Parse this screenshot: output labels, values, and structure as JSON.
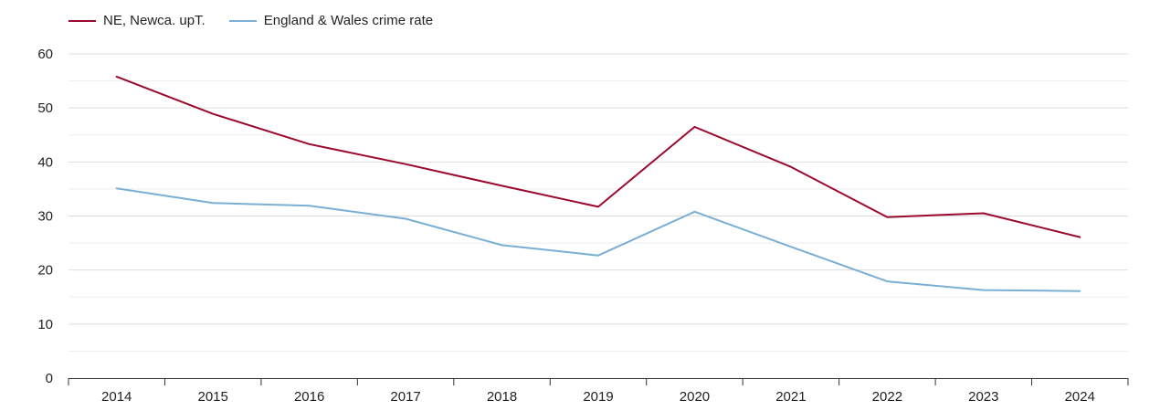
{
  "colors": {
    "series_ne": "#9b0a2e",
    "series_ew": "#7aafd4",
    "grid": "#dddddd",
    "grid_minor": "#eeeeee",
    "axis": "#333333",
    "text": "#222222"
  },
  "chart_data": {
    "type": "line",
    "title": "",
    "xlabel": "",
    "ylabel": "",
    "legend_position": "top-left",
    "grid": true,
    "x": [
      "2014",
      "2015",
      "2016",
      "2017",
      "2018",
      "2019",
      "2020",
      "2021",
      "2022",
      "2023",
      "2024"
    ],
    "yticks": [
      0,
      10,
      20,
      30,
      40,
      50,
      60
    ],
    "ylim": [
      0,
      60
    ],
    "series": [
      {
        "name": "NE, Newca. upT.",
        "color": "#9b0a2e",
        "values": [
          55.8,
          48.9,
          43.3,
          39.6,
          35.6,
          31.7,
          46.5,
          39.1,
          29.8,
          30.5,
          26.1
        ]
      },
      {
        "name": "England & Wales crime rate",
        "color": "#7aafd4",
        "values": [
          35.1,
          32.4,
          31.9,
          29.5,
          24.6,
          22.7,
          30.8,
          24.3,
          17.9,
          16.3,
          16.1
        ]
      }
    ]
  }
}
